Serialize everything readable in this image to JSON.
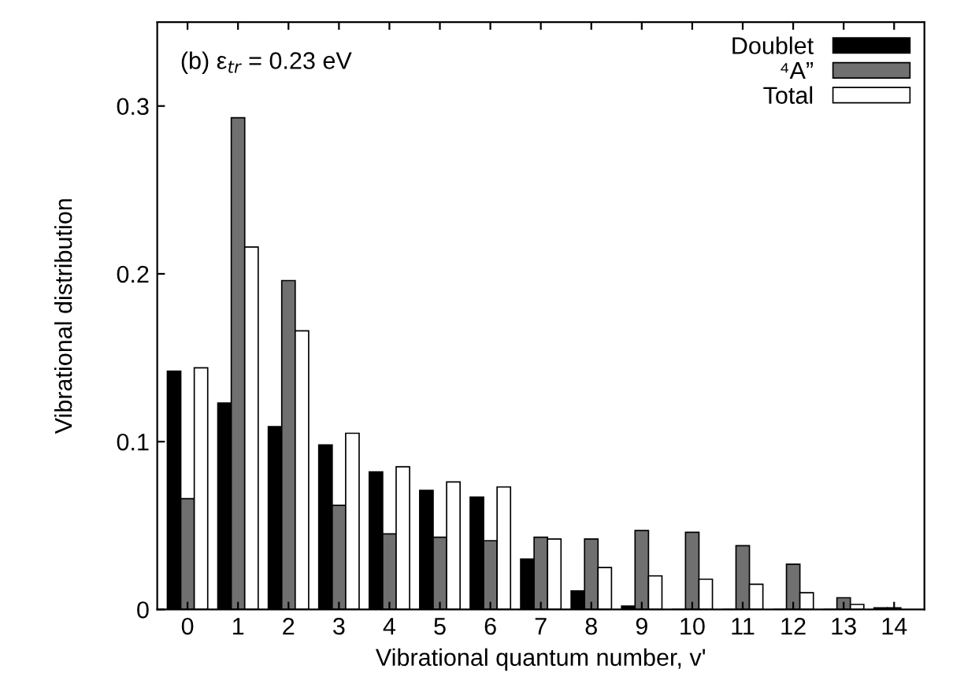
{
  "chart_data": {
    "type": "bar",
    "xlabel": "Vibrational quantum number, v'",
    "ylabel": "Vibrational distribution",
    "annotations": [
      "(b) ε$_{tr}$ = 0.23 eV"
    ],
    "categories": [
      "0",
      "1",
      "2",
      "3",
      "4",
      "5",
      "6",
      "7",
      "8",
      "9",
      "10",
      "11",
      "12",
      "13",
      "14"
    ],
    "series": [
      {
        "name": "Doublet",
        "color": "#000000",
        "values": [
          0.142,
          0.123,
          0.109,
          0.098,
          0.082,
          0.071,
          0.067,
          0.03,
          0.011,
          0.002,
          0,
          0,
          0,
          0,
          0.001
        ]
      },
      {
        "name": "⁴A”",
        "color": "#707070",
        "values": [
          0.066,
          0.293,
          0.196,
          0.062,
          0.045,
          0.043,
          0.041,
          0.043,
          0.042,
          0.047,
          0.046,
          0.038,
          0.027,
          0.007,
          0.001
        ]
      },
      {
        "name": "Total",
        "color": "#ffffff",
        "values": [
          0.144,
          0.216,
          0.166,
          0.105,
          0.085,
          0.076,
          0.073,
          0.042,
          0.025,
          0.02,
          0.018,
          0.015,
          0.01,
          0.003,
          null
        ]
      }
    ],
    "ylim": [
      0,
      0.35
    ],
    "yticks": [
      0,
      0.1,
      0.2,
      0.3
    ],
    "grid": false,
    "legend": "top right"
  }
}
